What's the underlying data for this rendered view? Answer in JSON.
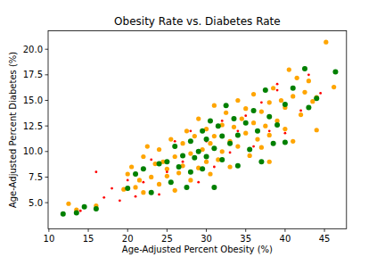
{
  "chart_data": {
    "type": "scatter",
    "title": "Obesity Rate vs. Diabetes Rate",
    "x_label": "Age-Adjusted Percent Obesity (%)",
    "y_label": "Age-Adjusted Percent Diabetes (%)",
    "xlim": [
      9.9,
      47.8
    ],
    "ylim": [
      2.45,
      21.8
    ],
    "xticks": [
      10,
      15,
      20,
      25,
      30,
      35,
      40,
      45
    ],
    "yticks": [
      {
        "value": 5,
        "label": "5.0"
      },
      7.5,
      {
        "value": 10,
        "label": "10.0"
      },
      12.5,
      {
        "value": 15,
        "label": "15.0"
      },
      17.5,
      {
        "value": 20,
        "label": "20.0"
      }
    ],
    "grid": false,
    "series": [
      {
        "color": "#ffa500",
        "marker": "circle",
        "x": [
          12.5,
          13.5,
          16,
          19.5,
          20,
          20.5,
          21,
          21.5,
          22,
          22.5,
          22,
          23,
          23.5,
          24,
          24,
          24.5,
          25,
          25.5,
          25,
          26,
          26,
          26.5,
          27,
          27,
          27.5,
          28,
          28,
          28.5,
          29,
          29,
          29.5,
          30,
          30,
          30.5,
          30.5,
          31,
          31,
          31.5,
          32,
          32,
          32.5,
          33,
          33,
          33.5,
          34,
          34,
          34.5,
          35,
          35,
          35.5,
          36,
          36,
          36.5,
          37,
          37,
          37.5,
          38,
          38,
          38.5,
          39,
          39.5,
          40,
          40.5,
          40,
          41,
          41.5,
          42,
          42.5,
          43,
          43.5,
          44,
          45.2,
          46.2,
          44,
          41,
          38
        ],
        "values": [
          4.9,
          4.3,
          4.7,
          6.3,
          7.8,
          8.5,
          6.5,
          7.2,
          9.5,
          10.5,
          6.0,
          7.5,
          8.8,
          6.8,
          10.2,
          9.0,
          7.6,
          11.2,
          8.3,
          6.2,
          9.5,
          7.9,
          10.8,
          8.6,
          12.0,
          7.2,
          9.8,
          11.5,
          8.4,
          13.2,
          10.2,
          9.0,
          12.2,
          7.8,
          10.8,
          11.5,
          14.5,
          9.2,
          12.6,
          10.0,
          13.8,
          11.0,
          8.5,
          12.4,
          15.0,
          10.5,
          13.2,
          11.8,
          14.2,
          9.6,
          12.8,
          15.6,
          11.2,
          13.9,
          10.4,
          12.5,
          14.8,
          11.6,
          16.2,
          13.0,
          15.0,
          12.2,
          18.0,
          14.3,
          15.4,
          17.2,
          13.6,
          15.8,
          16.9,
          14.9,
          15.3,
          20.7,
          16.3,
          12.1,
          11.0,
          9.0
        ]
      },
      {
        "color": "#ff0000",
        "marker": "circle",
        "x": [
          14,
          16,
          17,
          18,
          19,
          20,
          21,
          22,
          23,
          24,
          25,
          26,
          27,
          28,
          29,
          30,
          31,
          32,
          33,
          34,
          35,
          36,
          37,
          38,
          39,
          40,
          42,
          43,
          39,
          44.5
        ],
        "values": [
          4.2,
          8.0,
          5.5,
          6.4,
          5.2,
          7.2,
          5.6,
          7.0,
          9.2,
          5.8,
          8.0,
          11.0,
          9.0,
          12.0,
          7.0,
          11.0,
          8.5,
          13.0,
          9.9,
          12.0,
          13.5,
          10.5,
          14.8,
          12.0,
          16.0,
          11.8,
          14.0,
          17.5,
          16.6,
          15.7
        ]
      },
      {
        "color": "#008000",
        "marker": "circle",
        "x": [
          11.8,
          13.5,
          14.5,
          16,
          20,
          21,
          22,
          23,
          24,
          25,
          25.5,
          26,
          26.5,
          27,
          27.5,
          28,
          28,
          28.5,
          29,
          29.5,
          29.5,
          30,
          30,
          30.5,
          31,
          31,
          31.5,
          32,
          32,
          32.5,
          33,
          33.5,
          34,
          34,
          35,
          35.5,
          36,
          36.5,
          37,
          37.5,
          38,
          38.5,
          39,
          40,
          40,
          41,
          42.5,
          43,
          46.4,
          44
        ],
        "values": [
          3.9,
          4.0,
          4.6,
          4.4,
          6.4,
          7.8,
          8.3,
          6.0,
          8.8,
          9.0,
          7.0,
          10.5,
          8.5,
          9.6,
          6.5,
          11.0,
          8.0,
          9.4,
          10.0,
          12.0,
          8.3,
          9.5,
          11.2,
          13.0,
          10.3,
          6.5,
          12.5,
          9.2,
          11.5,
          14.5,
          10.8,
          13.2,
          11.6,
          8.6,
          12.8,
          10.2,
          14.0,
          12.0,
          9.0,
          16.0,
          13.4,
          10.8,
          12.6,
          14.6,
          10.9,
          16.2,
          18.1,
          14.3,
          17.8,
          15.2
        ]
      }
    ]
  }
}
